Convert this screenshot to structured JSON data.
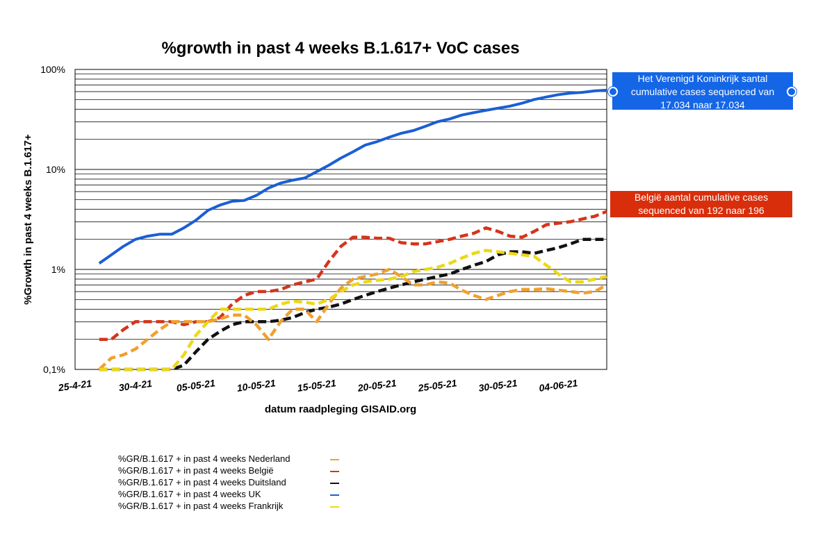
{
  "chart_data": {
    "type": "line",
    "title": "%growth in past 4 weeks B.1.617+ VoC cases",
    "xlabel": "datum raadpleging GISAID.org",
    "ylabel": "%Growth in past 4 weeks B.1.617+",
    "yscale": "log",
    "ylim": [
      0.1,
      100
    ],
    "yticks": [
      0.1,
      1,
      10,
      100
    ],
    "ytick_labels": [
      "0,1%",
      "1%",
      "10%",
      "100%"
    ],
    "xlim": [
      0,
      44
    ],
    "xticks": [
      0,
      5,
      10,
      15,
      20,
      25,
      30,
      35,
      40
    ],
    "xtick_labels": [
      "25-4-21",
      "30-4-21",
      "05-05-21",
      "10-05-21",
      "15-05-21",
      "20-05-21",
      "25-05-21",
      "30-05-21",
      "04-06-21"
    ],
    "grid": true,
    "series": [
      {
        "key": "uk",
        "name": "%GR/B.1.617 +  in past 4 weeks  UK",
        "color": "#1a5fd4",
        "dash": "solid",
        "points": [
          [
            2,
            1.15
          ],
          [
            3,
            1.4
          ],
          [
            4,
            1.7
          ],
          [
            5,
            2.0
          ],
          [
            6,
            2.15
          ],
          [
            7,
            2.25
          ],
          [
            8,
            2.25
          ],
          [
            9,
            2.6
          ],
          [
            10,
            3.1
          ],
          [
            11,
            3.9
          ],
          [
            12,
            4.4
          ],
          [
            13,
            4.8
          ],
          [
            14,
            4.9
          ],
          [
            15,
            5.5
          ],
          [
            16,
            6.5
          ],
          [
            17,
            7.3
          ],
          [
            18,
            7.8
          ],
          [
            19,
            8.2
          ],
          [
            20,
            9.5
          ],
          [
            21,
            11
          ],
          [
            22,
            13
          ],
          [
            23,
            15
          ],
          [
            24,
            17.5
          ],
          [
            25,
            19
          ],
          [
            26,
            21
          ],
          [
            27,
            23
          ],
          [
            28,
            24.5
          ],
          [
            29,
            27
          ],
          [
            30,
            30
          ],
          [
            31,
            32
          ],
          [
            32,
            35
          ],
          [
            33,
            37
          ],
          [
            34,
            39
          ],
          [
            35,
            41
          ],
          [
            36,
            43
          ],
          [
            37,
            46
          ],
          [
            38,
            50
          ],
          [
            39,
            53
          ],
          [
            40,
            56
          ],
          [
            41,
            58
          ],
          [
            42,
            59
          ],
          [
            43,
            61
          ],
          [
            44,
            62
          ]
        ]
      },
      {
        "key": "be",
        "name": " %GR/B.1.617 +  in past 4 weeks  België",
        "color": "#d4351c",
        "dash": "dashed",
        "points": [
          [
            2,
            0.2
          ],
          [
            3,
            0.2
          ],
          [
            4,
            0.25
          ],
          [
            5,
            0.3
          ],
          [
            6,
            0.3
          ],
          [
            7,
            0.3
          ],
          [
            8,
            0.3
          ],
          [
            9,
            0.28
          ],
          [
            10,
            0.3
          ],
          [
            11,
            0.3
          ],
          [
            12,
            0.33
          ],
          [
            13,
            0.45
          ],
          [
            14,
            0.55
          ],
          [
            15,
            0.6
          ],
          [
            16,
            0.6
          ],
          [
            17,
            0.63
          ],
          [
            18,
            0.7
          ],
          [
            19,
            0.75
          ],
          [
            20,
            0.8
          ],
          [
            21,
            1.2
          ],
          [
            22,
            1.7
          ],
          [
            23,
            2.1
          ],
          [
            24,
            2.1
          ],
          [
            25,
            2.05
          ],
          [
            26,
            2.05
          ],
          [
            27,
            1.85
          ],
          [
            28,
            1.8
          ],
          [
            29,
            1.8
          ],
          [
            30,
            1.9
          ],
          [
            31,
            2.0
          ],
          [
            32,
            2.15
          ],
          [
            33,
            2.3
          ],
          [
            34,
            2.6
          ],
          [
            35,
            2.4
          ],
          [
            36,
            2.15
          ],
          [
            37,
            2.1
          ],
          [
            38,
            2.4
          ],
          [
            39,
            2.8
          ],
          [
            40,
            2.9
          ],
          [
            41,
            3.0
          ],
          [
            42,
            3.2
          ],
          [
            43,
            3.4
          ],
          [
            44,
            3.8
          ]
        ]
      },
      {
        "key": "de",
        "name": "%GR/B.1.617 +  in past 4 weeks  Duitsland",
        "color": "#111111",
        "dash": "dashed",
        "points": [
          [
            2,
            0.1
          ],
          [
            3,
            0.1
          ],
          [
            4,
            0.1
          ],
          [
            5,
            0.1
          ],
          [
            6,
            0.1
          ],
          [
            7,
            0.1
          ],
          [
            8,
            0.1
          ],
          [
            9,
            0.11
          ],
          [
            10,
            0.15
          ],
          [
            11,
            0.2
          ],
          [
            12,
            0.24
          ],
          [
            13,
            0.28
          ],
          [
            14,
            0.3
          ],
          [
            15,
            0.3
          ],
          [
            16,
            0.3
          ],
          [
            17,
            0.31
          ],
          [
            18,
            0.33
          ],
          [
            19,
            0.37
          ],
          [
            20,
            0.4
          ],
          [
            21,
            0.42
          ],
          [
            22,
            0.45
          ],
          [
            23,
            0.5
          ],
          [
            24,
            0.55
          ],
          [
            25,
            0.6
          ],
          [
            26,
            0.65
          ],
          [
            27,
            0.7
          ],
          [
            28,
            0.75
          ],
          [
            29,
            0.8
          ],
          [
            30,
            0.85
          ],
          [
            31,
            0.9
          ],
          [
            32,
            1.0
          ],
          [
            33,
            1.1
          ],
          [
            34,
            1.2
          ],
          [
            35,
            1.4
          ],
          [
            36,
            1.5
          ],
          [
            37,
            1.5
          ],
          [
            38,
            1.45
          ],
          [
            39,
            1.55
          ],
          [
            40,
            1.65
          ],
          [
            41,
            1.8
          ],
          [
            42,
            2.0
          ],
          [
            43,
            2.0
          ],
          [
            44,
            2.0
          ]
        ]
      },
      {
        "key": "nl",
        "name": "%GR/B.1.617 +  in past 4 weeks Nederland",
        "color": "#f0a030",
        "dash": "dashed",
        "points": [
          [
            2,
            0.1
          ],
          [
            3,
            0.13
          ],
          [
            4,
            0.14
          ],
          [
            5,
            0.16
          ],
          [
            6,
            0.2
          ],
          [
            7,
            0.25
          ],
          [
            8,
            0.3
          ],
          [
            9,
            0.3
          ],
          [
            10,
            0.3
          ],
          [
            11,
            0.3
          ],
          [
            12,
            0.32
          ],
          [
            13,
            0.35
          ],
          [
            14,
            0.35
          ],
          [
            15,
            0.28
          ],
          [
            16,
            0.2
          ],
          [
            17,
            0.3
          ],
          [
            18,
            0.4
          ],
          [
            19,
            0.4
          ],
          [
            20,
            0.3
          ],
          [
            21,
            0.45
          ],
          [
            22,
            0.65
          ],
          [
            23,
            0.8
          ],
          [
            24,
            0.85
          ],
          [
            25,
            0.9
          ],
          [
            26,
            1.0
          ],
          [
            27,
            0.85
          ],
          [
            28,
            0.7
          ],
          [
            29,
            0.7
          ],
          [
            30,
            0.75
          ],
          [
            31,
            0.73
          ],
          [
            32,
            0.62
          ],
          [
            33,
            0.55
          ],
          [
            34,
            0.5
          ],
          [
            35,
            0.55
          ],
          [
            36,
            0.6
          ],
          [
            37,
            0.63
          ],
          [
            38,
            0.63
          ],
          [
            39,
            0.64
          ],
          [
            40,
            0.62
          ],
          [
            41,
            0.6
          ],
          [
            42,
            0.58
          ],
          [
            43,
            0.6
          ],
          [
            44,
            0.7
          ]
        ]
      },
      {
        "key": "fr",
        "name": "%GR/B.1.617 +  in past 4 weeks  Frankrijk",
        "color": "#ecd818",
        "dash": "dashed",
        "points": [
          [
            2,
            0.1
          ],
          [
            3,
            0.1
          ],
          [
            4,
            0.1
          ],
          [
            5,
            0.1
          ],
          [
            6,
            0.1
          ],
          [
            7,
            0.1
          ],
          [
            8,
            0.1
          ],
          [
            9,
            0.14
          ],
          [
            10,
            0.22
          ],
          [
            11,
            0.3
          ],
          [
            12,
            0.4
          ],
          [
            13,
            0.4
          ],
          [
            14,
            0.4
          ],
          [
            15,
            0.4
          ],
          [
            16,
            0.4
          ],
          [
            17,
            0.45
          ],
          [
            18,
            0.48
          ],
          [
            19,
            0.47
          ],
          [
            20,
            0.45
          ],
          [
            21,
            0.5
          ],
          [
            22,
            0.6
          ],
          [
            23,
            0.7
          ],
          [
            24,
            0.75
          ],
          [
            25,
            0.78
          ],
          [
            26,
            0.8
          ],
          [
            27,
            0.85
          ],
          [
            28,
            0.95
          ],
          [
            29,
            1.0
          ],
          [
            30,
            1.05
          ],
          [
            31,
            1.15
          ],
          [
            32,
            1.3
          ],
          [
            33,
            1.45
          ],
          [
            34,
            1.55
          ],
          [
            35,
            1.5
          ],
          [
            36,
            1.45
          ],
          [
            37,
            1.4
          ],
          [
            38,
            1.35
          ],
          [
            39,
            1.1
          ],
          [
            40,
            0.9
          ],
          [
            41,
            0.75
          ],
          [
            42,
            0.75
          ],
          [
            43,
            0.8
          ],
          [
            44,
            0.85
          ]
        ]
      }
    ],
    "legend": [
      {
        "key": "nl",
        "label": "%GR/B.1.617 +  in past 4 weeks Nederland",
        "color": "#f0a030"
      },
      {
        "key": "be",
        "label": " %GR/B.1.617 +  in past 4 weeks  België",
        "color": "#d4351c"
      },
      {
        "key": "de",
        "label": "%GR/B.1.617 +  in past 4 weeks  Duitsland",
        "color": "#111111"
      },
      {
        "key": "uk",
        "label": "%GR/B.1.617 +  in past 4 weeks  UK",
        "color": "#1a5fd4"
      },
      {
        "key": "fr",
        "label": "%GR/B.1.617 +  in past 4 weeks  Frankrijk",
        "color": "#ecd818"
      }
    ],
    "annotations": [
      {
        "key": "uk",
        "lines": [
          "Het Verenigd Koninkrijk santal",
          "cumulative cases sequenced van",
          "17.034 naar 17.034"
        ],
        "color": "#1466e6"
      },
      {
        "key": "be",
        "lines": [
          "België  aantal cumulative cases",
          "sequenced  van 192 naar 196"
        ],
        "color": "#d92e0b"
      }
    ]
  }
}
